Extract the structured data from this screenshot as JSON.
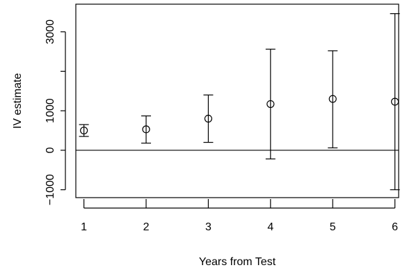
{
  "chart_data": {
    "type": "scatter",
    "title": "",
    "xlabel": "Years from Test",
    "ylabel": "IV estimate",
    "x_ticks": [
      1,
      2,
      3,
      4,
      5,
      6
    ],
    "y_ticks": [
      -1000,
      0,
      1000,
      2000,
      3000
    ],
    "y_tick_labels": [
      "−1000",
      "0",
      "1000",
      "",
      "3000"
    ],
    "xlim": [
      0.87,
      6.06
    ],
    "ylim": [
      -1200,
      3700
    ],
    "reference_line": 0,
    "points": [
      {
        "x": 1,
        "y": 500,
        "lower": 350,
        "upper": 650
      },
      {
        "x": 2,
        "y": 530,
        "lower": 180,
        "upper": 870
      },
      {
        "x": 3,
        "y": 800,
        "lower": 200,
        "upper": 1400
      },
      {
        "x": 4,
        "y": 1170,
        "lower": -220,
        "upper": 2560
      },
      {
        "x": 5,
        "y": 1300,
        "lower": 60,
        "upper": 2520
      },
      {
        "x": 6,
        "y": 1230,
        "lower": -1000,
        "upper": 3460
      }
    ],
    "grid": false,
    "legend": "none"
  }
}
